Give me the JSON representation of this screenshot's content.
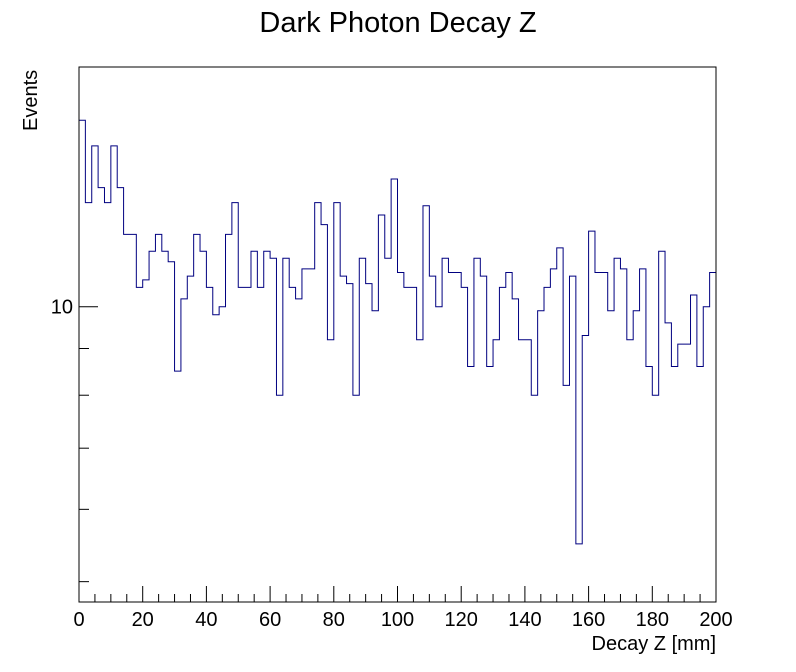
{
  "chart_data": {
    "type": "histogram",
    "title": "Dark Photon Decay Z",
    "xlabel": "Decay Z [mm]",
    "ylabel": "Events",
    "xlim": [
      0,
      200
    ],
    "ylim": [
      4.75,
      18.3
    ],
    "y_scale": "log",
    "x_ticks": [
      0,
      20,
      40,
      60,
      80,
      100,
      120,
      140,
      160,
      180,
      200
    ],
    "y_ticks_labeled": [
      10
    ],
    "bin_width": 2,
    "series": [
      {
        "line_color": "#000080",
        "values": [
          16,
          13,
          15,
          13.5,
          13,
          15,
          13.5,
          12,
          12,
          10.5,
          10.7,
          11.5,
          12,
          11.5,
          11.2,
          8.5,
          10.2,
          10.8,
          12,
          11.5,
          10.5,
          9.8,
          10,
          12,
          13,
          10.5,
          10.5,
          11.5,
          10.5,
          11.5,
          11.3,
          8,
          11.3,
          10.5,
          10.2,
          11,
          11,
          13,
          12.3,
          9.2,
          13,
          10.8,
          10.6,
          8,
          11.3,
          10.6,
          9.9,
          12.6,
          11.3,
          13.8,
          10.9,
          10.5,
          10.5,
          9.2,
          12.9,
          10.8,
          10.0,
          11.3,
          10.9,
          10.9,
          10.5,
          8.6,
          11.3,
          10.8,
          8.6,
          9.2,
          10.5,
          10.9,
          10.2,
          9.2,
          9.2,
          8,
          9.9,
          10.5,
          11,
          11.6,
          8.2,
          10.8,
          5.5,
          9.3,
          12.1,
          10.9,
          10.9,
          9.9,
          11.3,
          11,
          9.2,
          9.9,
          11,
          8.6,
          8,
          11.5,
          9.6,
          8.6,
          9.1,
          9.1,
          10.3,
          8.6,
          10.0,
          10.9
        ]
      }
    ]
  }
}
